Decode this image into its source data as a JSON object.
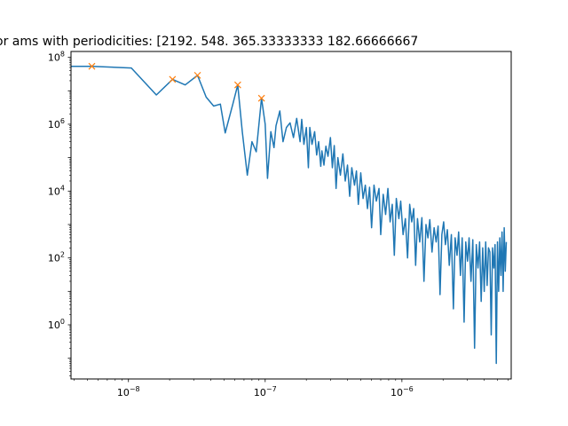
{
  "chart_data": {
    "type": "line",
    "title": "or ams with periodicities: [2192.          548.          365.33333333  182.66666667",
    "xscale": "log",
    "yscale": "log",
    "xlim": [
      3.8e-09,
      6.3e-06
    ],
    "ylim": [
      0.024,
      150000000.0
    ],
    "grid": false,
    "x_ticks": [
      {
        "value": 1e-08,
        "base": "10",
        "exp": "−8"
      },
      {
        "value": 1e-07,
        "base": "10",
        "exp": "−7"
      },
      {
        "value": 1e-06,
        "base": "10",
        "exp": "−6"
      }
    ],
    "y_ticks": [
      {
        "value": 1,
        "base": "10",
        "exp": "0"
      },
      {
        "value": 100,
        "base": "10",
        "exp": "2"
      },
      {
        "value": 10000,
        "base": "10",
        "exp": "4"
      },
      {
        "value": 1000000,
        "base": "10",
        "exp": "6"
      },
      {
        "value": 100000000,
        "base": "10",
        "exp": "8"
      }
    ],
    "series": [
      {
        "kind": "line",
        "color": "#1f77b4",
        "points": [
          [
            3.8e-09,
            54000000.0
          ],
          [
            5.4e-09,
            54000000.0
          ],
          [
            1.05e-08,
            48000000.0
          ],
          [
            1.6e-08,
            7500000.0
          ],
          [
            2.1e-08,
            22000000.0
          ],
          [
            2.6e-08,
            15000000.0
          ],
          [
            3.2e-08,
            29000000.0
          ],
          [
            3.7e-08,
            6500000.0
          ],
          [
            4.2e-08,
            3500000.0
          ],
          [
            4.7e-08,
            4000000.0
          ],
          [
            5.1e-08,
            550000.0
          ],
          [
            5.8e-08,
            4000000.0
          ],
          [
            6.3e-08,
            15000000.0
          ],
          [
            6.8e-08,
            600000.0
          ],
          [
            7.4e-08,
            30000.0
          ],
          [
            8e-08,
            300000.0
          ],
          [
            8.6e-08,
            150000.0
          ],
          [
            9.4e-08,
            6000000.0
          ],
          [
            1e-07,
            1000000.0
          ],
          [
            1.04e-07,
            24000.0
          ],
          [
            1.1e-07,
            600000.0
          ],
          [
            1.16e-07,
            200000.0
          ],
          [
            1.2e-07,
            900000.0
          ],
          [
            1.28e-07,
            2500000.0
          ],
          [
            1.35e-07,
            300000.0
          ],
          [
            1.43e-07,
            800000.0
          ],
          [
            1.52e-07,
            1100000.0
          ],
          [
            1.61e-07,
            400000.0
          ],
          [
            1.7e-07,
            1500000.0
          ],
          [
            1.8e-07,
            300000.0
          ],
          [
            1.85e-07,
            1400000.0
          ],
          [
            1.92e-07,
            250000.0
          ],
          [
            2e-07,
            800000.0
          ],
          [
            2.07e-07,
            50000.0
          ],
          [
            2.12e-07,
            800000.0
          ],
          [
            2.2e-07,
            250000.0
          ],
          [
            2.3e-07,
            600000.0
          ],
          [
            2.38e-07,
            120000.0
          ],
          [
            2.46e-07,
            300000.0
          ],
          [
            2.55e-07,
            55000.0
          ],
          [
            2.6e-07,
            160000.0
          ],
          [
            2.69e-07,
            60000.0
          ],
          [
            2.78e-07,
            220000.0
          ],
          [
            2.88e-07,
            110000.0
          ],
          [
            3e-07,
            400000.0
          ],
          [
            3.1e-07,
            50000.0
          ],
          [
            3.2e-07,
            230000.0
          ],
          [
            3.3e-07,
            12000.0
          ],
          [
            3.4e-07,
            100000.0
          ],
          [
            3.55e-07,
            30000.0
          ],
          [
            3.7e-07,
            130000.0
          ],
          [
            3.85e-07,
            20000.0
          ],
          [
            4e-07,
            60000.0
          ],
          [
            4.15e-07,
            7000.0
          ],
          [
            4.3e-07,
            50000.0
          ],
          [
            4.5e-07,
            15000.0
          ],
          [
            4.65e-07,
            40000.0
          ],
          [
            4.8e-07,
            4000.0
          ],
          [
            5e-07,
            35000.0
          ],
          [
            5.2e-07,
            6000.0
          ],
          [
            5.4e-07,
            15000.0
          ],
          [
            5.6e-07,
            3000.0
          ],
          [
            5.8e-07,
            13000.0
          ],
          [
            6e-07,
            800.0
          ],
          [
            6.25e-07,
            15000.0
          ],
          [
            6.5e-07,
            5000.0
          ],
          [
            6.8e-07,
            12000.0
          ],
          [
            7e-07,
            500.0
          ],
          [
            7.3e-07,
            8000.0
          ],
          [
            7.6e-07,
            2000.0
          ],
          [
            7.9e-07,
            12000.0
          ],
          [
            8.2e-07,
            1200.0
          ],
          [
            8.5e-07,
            4000.0
          ],
          [
            8.8e-07,
            120.0
          ],
          [
            9.1e-07,
            6000.0
          ],
          [
            9.5e-07,
            1500.0
          ],
          [
            9.8e-07,
            5000.0
          ],
          [
            1.02e-06,
            500.0
          ],
          [
            1.06e-06,
            1500.0
          ],
          [
            1.1e-06,
            100.0
          ],
          [
            1.14e-06,
            4000.0
          ],
          [
            1.18e-06,
            1200.0
          ],
          [
            1.22e-06,
            3000.0
          ],
          [
            1.26e-06,
            60.0
          ],
          [
            1.3e-06,
            1500.0
          ],
          [
            1.35e-06,
            300.0
          ],
          [
            1.4e-06,
            1600.0
          ],
          [
            1.45e-06,
            20.0
          ],
          [
            1.5e-06,
            1000.0
          ],
          [
            1.55e-06,
            400.0
          ],
          [
            1.6e-06,
            1400.0
          ],
          [
            1.66e-06,
            150.0
          ],
          [
            1.72e-06,
            800.0
          ],
          [
            1.78e-06,
            300.0
          ],
          [
            1.84e-06,
            900.0
          ],
          [
            1.9e-06,
            8.0
          ],
          [
            1.96e-06,
            500.0
          ],
          [
            2.02e-06,
            1200.0
          ],
          [
            2.08e-06,
            250.0
          ],
          [
            2.15e-06,
            700.0
          ],
          [
            2.22e-06,
            60.0
          ],
          [
            2.3e-06,
            500.0
          ],
          [
            2.38e-06,
            3.0
          ],
          [
            2.45e-06,
            400.0
          ],
          [
            2.53e-06,
            120.0
          ],
          [
            2.6e-06,
            600.0
          ],
          [
            2.68e-06,
            30.0
          ],
          [
            2.76e-06,
            400.0
          ],
          [
            2.85e-06,
            1.2
          ],
          [
            2.93e-06,
            300.0
          ],
          [
            3.02e-06,
            80.0
          ],
          [
            3.1e-06,
            400.0
          ],
          [
            3.2e-06,
            20.0
          ],
          [
            3.3e-06,
            350.0
          ],
          [
            3.4e-06,
            0.2
          ],
          [
            3.5e-06,
            250.0
          ],
          [
            3.6e-06,
            50.0
          ],
          [
            3.7e-06,
            300.0
          ],
          [
            3.8e-06,
            5.0
          ],
          [
            3.9e-06,
            200.0
          ],
          [
            4e-06,
            10.0
          ],
          [
            4.1e-06,
            300.0
          ],
          [
            4.2e-06,
            15.0
          ],
          [
            4.3e-06,
            200.0
          ],
          [
            4.4e-06,
            150.0
          ],
          [
            4.5e-06,
            0.5
          ],
          [
            4.6e-06,
            200.0
          ],
          [
            4.7e-06,
            50.0
          ],
          [
            4.8e-06,
            250.0
          ],
          [
            4.9e-06,
            0.07
          ],
          [
            5e-06,
            300.0
          ],
          [
            5.1e-06,
            10.0
          ],
          [
            5.2e-06,
            400.0
          ],
          [
            5.3e-06,
            30.0
          ],
          [
            5.4e-06,
            600.0
          ],
          [
            5.5e-06,
            10.0
          ],
          [
            5.6e-06,
            800.0
          ],
          [
            5.7e-06,
            40.0
          ],
          [
            5.8e-06,
            300.0
          ]
        ]
      },
      {
        "kind": "markers",
        "color": "#ff7f0e",
        "marker": "x",
        "points": [
          [
            5.4e-09,
            54000000.0
          ],
          [
            2.1e-08,
            22000000.0
          ],
          [
            3.2e-08,
            29000000.0
          ],
          [
            6.3e-08,
            15000000.0
          ],
          [
            9.4e-08,
            6000000.0
          ]
        ]
      }
    ]
  }
}
